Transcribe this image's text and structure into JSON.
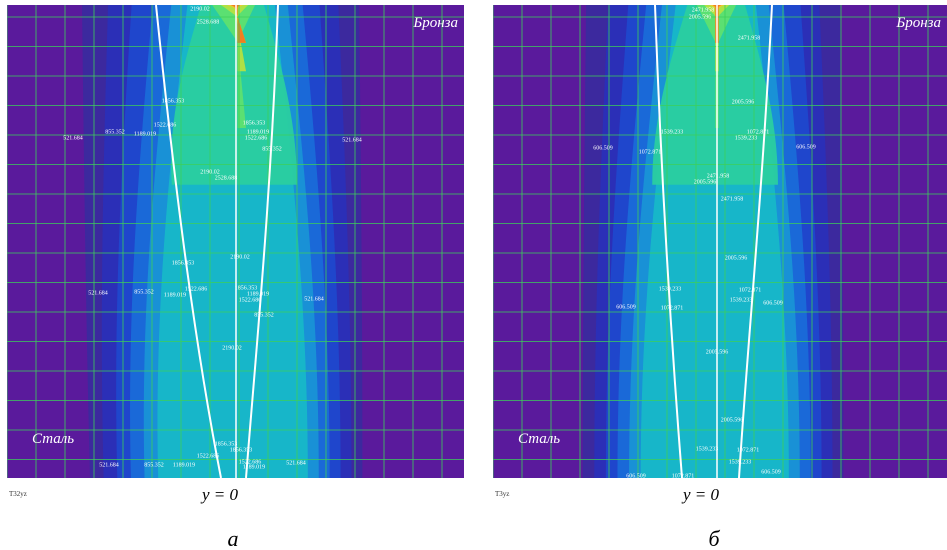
{
  "panels": [
    {
      "material_top": "Бронза",
      "material_bottom": "Сталь",
      "corner_label": "T32yz",
      "axis_caption": "y = 0",
      "letter": "а",
      "contour_labels": [
        "2190.02",
        "2528.688",
        "1856.353",
        "521.684",
        "855.352",
        "1189.019",
        "1522.686",
        "1856.353",
        "1189.019",
        "1522.686",
        "855.352",
        "521.684",
        "2190.02",
        "2528.688",
        "1856.353",
        "2190.02",
        "521.684",
        "855.352",
        "1189.019",
        "1522.686",
        "1856.353",
        "1189.019",
        "1522.686",
        "855.352",
        "521.684",
        "2190.02",
        "1856.353",
        "1856.353",
        "1522.686",
        "1522.686",
        "1189.019",
        "521.684",
        "855.352",
        "1189.019",
        "521.684"
      ]
    },
    {
      "material_top": "Бронза",
      "material_bottom": "Сталь",
      "corner_label": "T3yz",
      "axis_caption": "y = 0",
      "letter": "б",
      "contour_labels": [
        "2471.958",
        "2005.596",
        "2471.958",
        "2005.596",
        "1539.233",
        "1072.871",
        "606.509",
        "1072.871",
        "1539.233",
        "606.509",
        "2471.958",
        "2005.596",
        "2471.958",
        "2005.596",
        "1539.233",
        "1072.871",
        "1539.233",
        "606.509",
        "606.509",
        "1072.871",
        "2005.596",
        "2005.596",
        "1539.233",
        "1072.871",
        "1539.233",
        "606.509",
        "606.509",
        "1072.871"
      ]
    }
  ]
}
